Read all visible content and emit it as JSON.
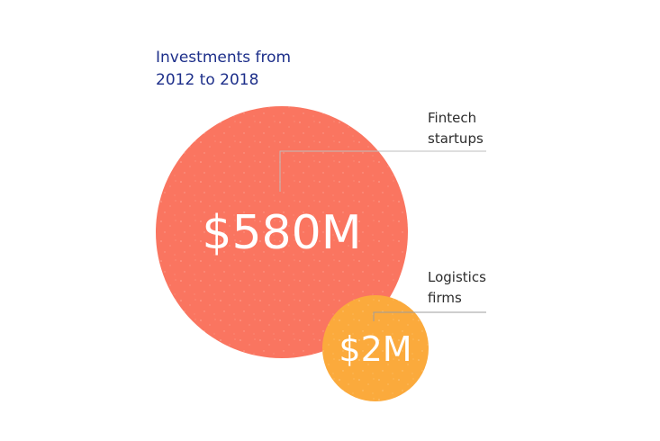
{
  "title": {
    "line1": "Investments from",
    "line2": "2012 to 2018"
  },
  "chart_data": {
    "type": "bubble",
    "title": "Investments from 2012 to 2018",
    "series": [
      {
        "label_lines": [
          "Fintech",
          "startups"
        ],
        "value": 580,
        "value_label": "$580M",
        "color": "#fa7560"
      },
      {
        "label_lines": [
          "Logistics",
          "firms"
        ],
        "value": 2,
        "value_label": "$2M",
        "color": "#fbaa3c"
      }
    ]
  }
}
